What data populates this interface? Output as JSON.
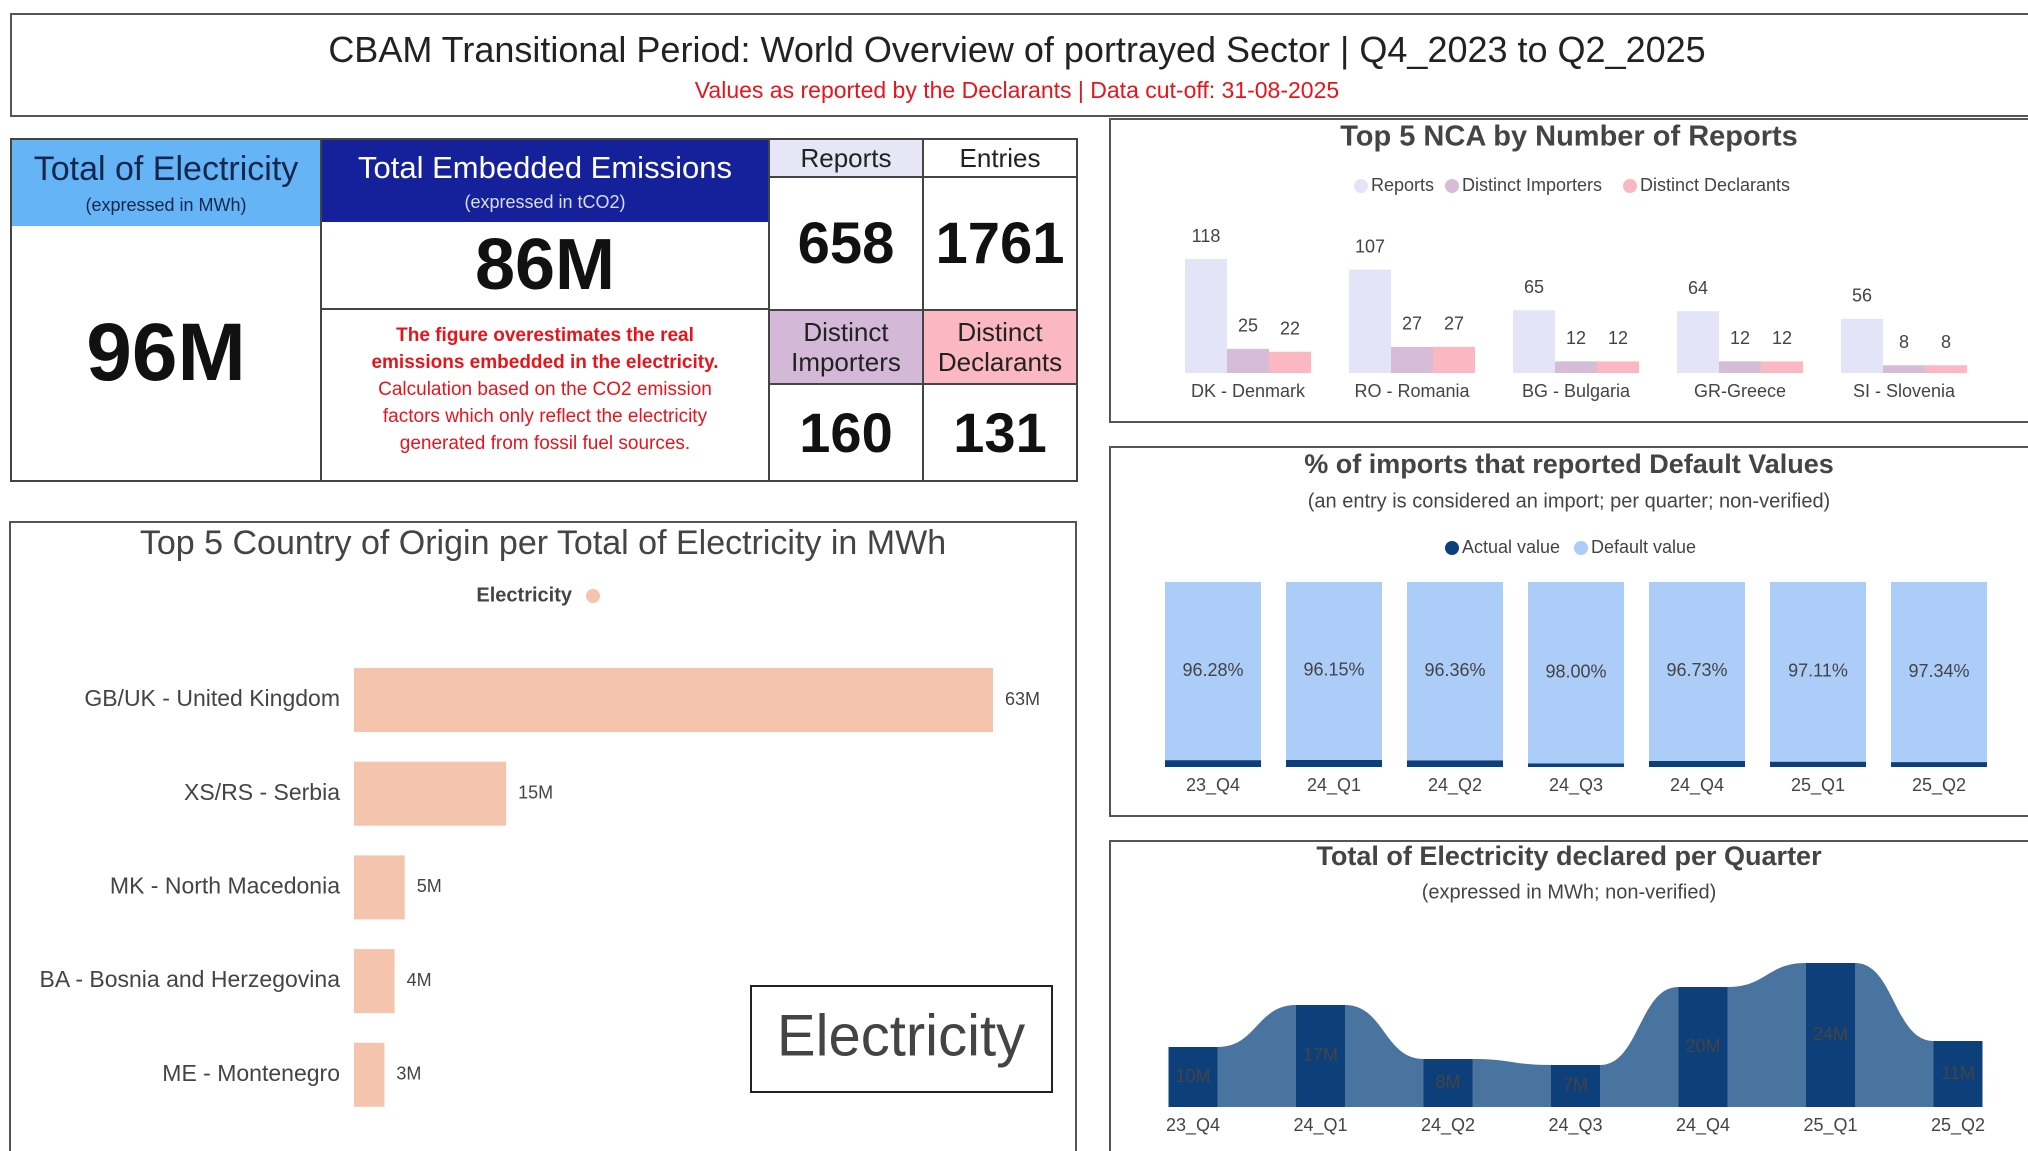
{
  "header": {
    "title": "CBAM Transitional Period: World Overview of portrayed Sector | Q4_2023 to Q2_2025",
    "subtitle": "Values as reported by the Declarants | Data cut-off: 31-08-2025"
  },
  "kpis": {
    "electricity": {
      "title": "Total of Electricity",
      "unit": "(expressed in MWh)",
      "value": "96M"
    },
    "emissions": {
      "title": "Total Embedded Emissions",
      "unit": "(expressed in tCO2)",
      "value": "86M",
      "note_bold": "The figure overestimates the real emissions embedded in the electricity.",
      "note": "Calculation based on the CO2 emission factors which only reflect the electricity generated from fossil fuel sources."
    },
    "reports": {
      "label": "Reports",
      "value": 658
    },
    "entries": {
      "label": "Entries",
      "value": 1761
    },
    "importers": {
      "label": "Distinct Importers",
      "value": 160
    },
    "declarants": {
      "label": "Distinct Declarants",
      "value": 131
    }
  },
  "badge": "Electricity",
  "chart_data": [
    {
      "type": "hbar",
      "title": "Top 5 Country of Origin per Total of Electricity in MWh",
      "categories": [
        "GB/UK - United Kingdom",
        "XS/RS - Serbia",
        "MK - North Macedonia",
        "BA - Bosnia and Herzegovina",
        "ME - Montenegro"
      ],
      "series": [
        {
          "name": "Electricity",
          "color": "#f4c4ad",
          "values": [
            63000000,
            15000000,
            5000000,
            4000000,
            3000000
          ],
          "value_labels": [
            "63M",
            "15M",
            "5M",
            "4M",
            "3M"
          ]
        }
      ]
    },
    {
      "type": "bar",
      "title": "Top 5 NCA by Number of Reports",
      "categories": [
        "DK - Denmark",
        "RO - Romania",
        "BG - Bulgaria",
        "GR-Greece",
        "SI - Slovenia"
      ],
      "series": [
        {
          "name": "Reports",
          "color": "#e4e4f8",
          "values": [
            118,
            107,
            65,
            64,
            56
          ]
        },
        {
          "name": "Distinct Importers",
          "color": "#d6bcd7",
          "values": [
            25,
            27,
            12,
            12,
            8
          ]
        },
        {
          "name": "Distinct Declarants",
          "color": "#fbb7c2",
          "values": [
            22,
            27,
            12,
            12,
            8
          ]
        }
      ]
    },
    {
      "type": "stacked",
      "title": "% of imports that reported Default Values",
      "subtitle": "(an entry is considered an import; per quarter; non-verified)",
      "categories": [
        "23_Q4",
        "24_Q1",
        "24_Q2",
        "24_Q3",
        "24_Q4",
        "25_Q1",
        "25_Q2"
      ],
      "series": [
        {
          "name": "Actual value",
          "color": "#0d3f7a",
          "values": [
            3.72,
            3.85,
            3.64,
            2.0,
            3.27,
            2.89,
            2.66
          ]
        },
        {
          "name": "Default value",
          "color": "#abcdf8",
          "values": [
            96.28,
            96.15,
            96.36,
            98.0,
            96.73,
            97.11,
            97.34
          ],
          "value_labels": [
            "96.28%",
            "96.15%",
            "96.36%",
            "98.00%",
            "96.73%",
            "97.11%",
            "97.34%"
          ]
        }
      ]
    },
    {
      "type": "ribbon",
      "title": "Total of Electricity declared per Quarter",
      "subtitle": "(expressed in MWh; non-verified)",
      "categories": [
        "23_Q4",
        "24_Q1",
        "24_Q2",
        "24_Q3",
        "24_Q4",
        "25_Q1",
        "25_Q2"
      ],
      "values": [
        10000000,
        17000000,
        8000000,
        7000000,
        20000000,
        24000000,
        11000000
      ],
      "value_labels": [
        "10M",
        "17M",
        "8M",
        "7M",
        "20M",
        "24M",
        "11M"
      ],
      "color": "#0d3f7a",
      "ribbon_color": "#4a74a0"
    }
  ]
}
